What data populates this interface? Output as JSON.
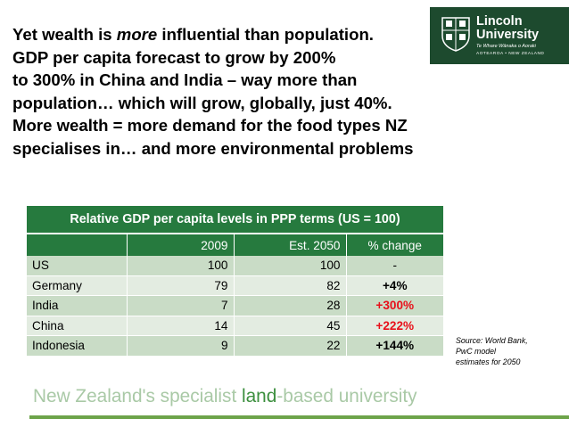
{
  "headline": {
    "line1_pre": "Yet wealth is ",
    "line1_em": "more",
    "line1_post": " influential than population.",
    "line2": "GDP per capita forecast to grow by 200%",
    "line3": "to 300% in China and India – way more than",
    "line4": "population… which will grow, globally, just 40%.",
    "line5": "More wealth = more demand for the food types NZ",
    "line6": "specialises in… and more environmental problems"
  },
  "logo": {
    "name_line1": "Lincoln",
    "name_line2": "University",
    "motto": "Te Whare Wānaka o Aoraki",
    "place": "AOTEAROA • NEW ZEALAND",
    "bg_color": "#1d4a2e"
  },
  "table": {
    "title": "Relative GDP per capita levels in PPP terms (US = 100)",
    "columns": [
      "",
      "2009",
      "Est. 2050",
      "% change"
    ],
    "rows": [
      {
        "country": "US",
        "y2009": "100",
        "y2050": "100",
        "change": "-",
        "change_color": "#000000"
      },
      {
        "country": "Germany",
        "y2009": "79",
        "y2050": "82",
        "change": "+4%",
        "change_color": "#000000"
      },
      {
        "country": "India",
        "y2009": "7",
        "y2050": "28",
        "change": "+300%",
        "change_color": "#e8101a"
      },
      {
        "country": "China",
        "y2009": "14",
        "y2050": "45",
        "change": "+222%",
        "change_color": "#e8101a"
      },
      {
        "country": "Indonesia",
        "y2009": "9",
        "y2050": "22",
        "change": "+144%",
        "change_color": "#000000"
      }
    ],
    "header_color": "#267a3e"
  },
  "source": {
    "line1": "Source:  World Bank,",
    "line2": "PwC model",
    "line3": "estimates for 2050"
  },
  "footer": {
    "part1": "New Zealand's specialist ",
    "part2": "land",
    "part3": "-based university"
  }
}
